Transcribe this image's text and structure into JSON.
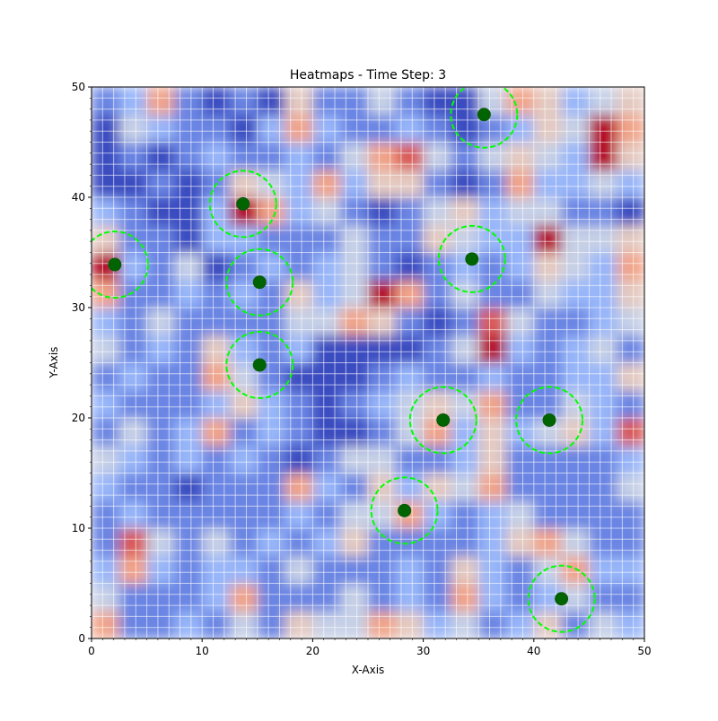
{
  "chart_data": {
    "type": "heatmap-scatter",
    "title": "Heatmaps - Time Step: 3",
    "x_label": "X-Axis",
    "y_label": "Y-Axis",
    "xlim": [
      0,
      50
    ],
    "ylim": [
      0,
      50
    ],
    "xticks": [
      0,
      10,
      20,
      30,
      40,
      50
    ],
    "yticks": [
      0,
      10,
      20,
      30,
      40,
      50
    ],
    "colormap": "coolwarm",
    "z": [
      [
        0.7,
        0.3,
        0.3,
        0.4,
        0.3,
        0.5,
        0.3,
        0.6,
        0.5,
        0.5,
        0.7,
        0.6,
        0.4,
        0.5,
        0.3,
        0.4,
        0.6,
        0.3,
        0.5,
        0.4
      ],
      [
        0.5,
        0.3,
        0.3,
        0.3,
        0.4,
        0.7,
        0.3,
        0.3,
        0.3,
        0.5,
        0.3,
        0.4,
        0.3,
        0.7,
        0.4,
        0.3,
        0.4,
        0.5,
        0.3,
        0.3
      ],
      [
        0.4,
        0.7,
        0.4,
        0.3,
        0.4,
        0.4,
        0.3,
        0.5,
        0.3,
        0.3,
        0.3,
        0.4,
        0.3,
        0.6,
        0.4,
        0.3,
        0.5,
        0.7,
        0.4,
        0.4
      ],
      [
        0.3,
        0.8,
        0.5,
        0.3,
        0.5,
        0.3,
        0.4,
        0.3,
        0.4,
        0.6,
        0.3,
        0.3,
        0.3,
        0.3,
        0.4,
        0.6,
        0.7,
        0.5,
        0.3,
        0.3
      ],
      [
        0.3,
        0.4,
        0.3,
        0.3,
        0.3,
        0.3,
        0.3,
        0.4,
        0.3,
        0.5,
        0.5,
        0.7,
        0.4,
        0.3,
        0.4,
        0.5,
        0.3,
        0.3,
        0.3,
        0.3
      ],
      [
        0.4,
        0.3,
        0.3,
        0.2,
        0.3,
        0.3,
        0.3,
        0.7,
        0.4,
        0.3,
        0.6,
        0.4,
        0.6,
        0.5,
        0.7,
        0.3,
        0.3,
        0.3,
        0.3,
        0.5
      ],
      [
        0.5,
        0.4,
        0.3,
        0.4,
        0.3,
        0.4,
        0.3,
        0.2,
        0.3,
        0.5,
        0.5,
        0.3,
        0.3,
        0.4,
        0.6,
        0.3,
        0.3,
        0.3,
        0.3,
        0.4
      ],
      [
        0.3,
        0.5,
        0.3,
        0.4,
        0.7,
        0.3,
        0.4,
        0.3,
        0.2,
        0.2,
        0.3,
        0.5,
        0.7,
        0.4,
        0.6,
        0.4,
        0.5,
        0.6,
        0.4,
        0.8
      ],
      [
        0.4,
        0.3,
        0.3,
        0.3,
        0.4,
        0.6,
        0.4,
        0.3,
        0.2,
        0.3,
        0.4,
        0.5,
        0.6,
        0.5,
        0.7,
        0.3,
        0.3,
        0.5,
        0.4,
        0.3
      ],
      [
        0.3,
        0.4,
        0.3,
        0.3,
        0.7,
        0.5,
        0.3,
        0.2,
        0.2,
        0.2,
        0.3,
        0.4,
        0.3,
        0.3,
        0.4,
        0.3,
        0.3,
        0.4,
        0.4,
        0.6
      ],
      [
        0.5,
        0.3,
        0.4,
        0.3,
        0.6,
        0.4,
        0.3,
        0.4,
        0.2,
        0.2,
        0.2,
        0.2,
        0.3,
        0.5,
        0.9,
        0.4,
        0.3,
        0.4,
        0.5,
        0.3
      ],
      [
        0.4,
        0.3,
        0.5,
        0.3,
        0.3,
        0.3,
        0.3,
        0.5,
        0.5,
        0.7,
        0.6,
        0.3,
        0.2,
        0.3,
        0.8,
        0.5,
        0.3,
        0.3,
        0.4,
        0.5
      ],
      [
        0.7,
        0.3,
        0.3,
        0.4,
        0.3,
        0.4,
        0.3,
        0.6,
        0.4,
        0.5,
        0.9,
        0.7,
        0.3,
        0.5,
        0.3,
        0.3,
        0.5,
        0.4,
        0.4,
        0.6
      ],
      [
        0.9,
        0.4,
        0.3,
        0.5,
        0.2,
        0.3,
        0.4,
        0.3,
        0.4,
        0.5,
        0.3,
        0.2,
        0.3,
        0.4,
        0.3,
        0.4,
        0.6,
        0.5,
        0.4,
        0.7
      ],
      [
        0.6,
        0.3,
        0.3,
        0.2,
        0.4,
        0.4,
        0.3,
        0.3,
        0.3,
        0.5,
        0.3,
        0.3,
        0.6,
        0.5,
        0.4,
        0.4,
        0.9,
        0.5,
        0.5,
        0.6
      ],
      [
        0.4,
        0.3,
        0.2,
        0.2,
        0.4,
        0.9,
        0.7,
        0.4,
        0.5,
        0.3,
        0.2,
        0.3,
        0.5,
        0.6,
        0.4,
        0.5,
        0.5,
        0.3,
        0.3,
        0.2
      ],
      [
        0.2,
        0.2,
        0.3,
        0.2,
        0.3,
        0.6,
        0.5,
        0.4,
        0.7,
        0.4,
        0.6,
        0.6,
        0.3,
        0.2,
        0.3,
        0.7,
        0.4,
        0.4,
        0.5,
        0.4
      ],
      [
        0.2,
        0.3,
        0.2,
        0.3,
        0.4,
        0.3,
        0.3,
        0.4,
        0.3,
        0.5,
        0.7,
        0.8,
        0.5,
        0.3,
        0.5,
        0.6,
        0.5,
        0.4,
        0.9,
        0.6
      ],
      [
        0.2,
        0.5,
        0.4,
        0.3,
        0.3,
        0.2,
        0.4,
        0.7,
        0.4,
        0.3,
        0.3,
        0.4,
        0.3,
        0.2,
        0.3,
        0.4,
        0.6,
        0.5,
        0.9,
        0.7
      ],
      [
        0.3,
        0.4,
        0.7,
        0.3,
        0.2,
        0.3,
        0.2,
        0.6,
        0.3,
        0.3,
        0.5,
        0.3,
        0.2,
        0.2,
        0.5,
        0.7,
        0.6,
        0.4,
        0.5,
        0.6
      ]
    ],
    "points": {
      "color": "#006400",
      "x": [
        2.1,
        13.7,
        15.2,
        15.2,
        35.5,
        34.4,
        31.8,
        41.4,
        28.3,
        42.5
      ],
      "y": [
        33.9,
        39.4,
        32.3,
        24.8,
        47.5,
        34.4,
        19.8,
        19.8,
        11.6,
        3.6
      ]
    },
    "circle_radius": 3,
    "circle_color": "#00ff00"
  }
}
